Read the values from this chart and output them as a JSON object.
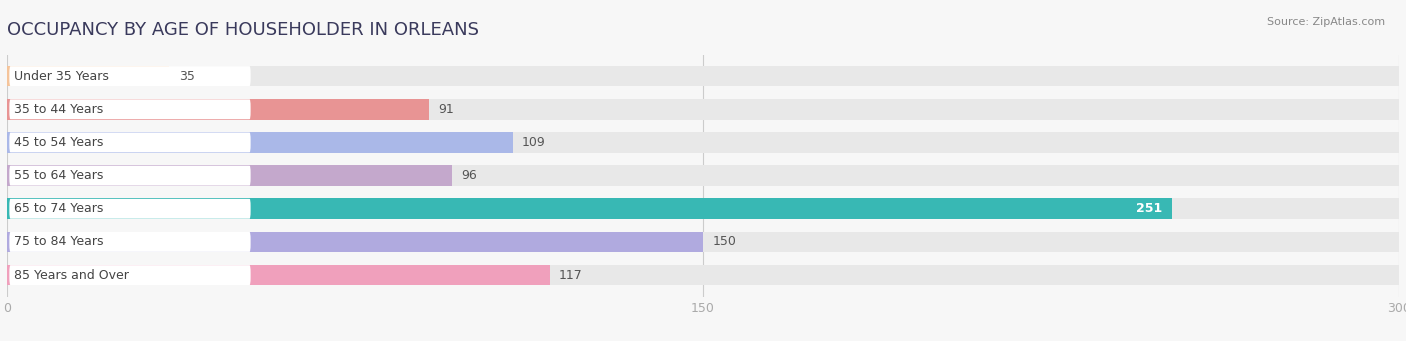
{
  "title": "OCCUPANCY BY AGE OF HOUSEHOLDER IN ORLEANS",
  "source": "Source: ZipAtlas.com",
  "categories": [
    "Under 35 Years",
    "35 to 44 Years",
    "45 to 54 Years",
    "55 to 64 Years",
    "65 to 74 Years",
    "75 to 84 Years",
    "85 Years and Over"
  ],
  "values": [
    35,
    91,
    109,
    96,
    251,
    150,
    117
  ],
  "bar_colors": [
    "#f5c49a",
    "#e89494",
    "#aab8e8",
    "#c4a8cc",
    "#38b8b4",
    "#b0aadf",
    "#f0a0bc"
  ],
  "bar_bg_color": "#e8e8e8",
  "label_bg_color": "#ffffff",
  "xlim": [
    0,
    300
  ],
  "xticks": [
    0,
    150,
    300
  ],
  "background_color": "#f7f7f7",
  "title_fontsize": 13,
  "label_fontsize": 9,
  "value_fontsize": 9,
  "bar_height": 0.62,
  "label_color": "#444444",
  "value_color_inside": "#ffffff",
  "value_color_outside": "#555555",
  "inside_threshold": 240,
  "grid_color": "#cccccc",
  "tick_color": "#aaaaaa"
}
